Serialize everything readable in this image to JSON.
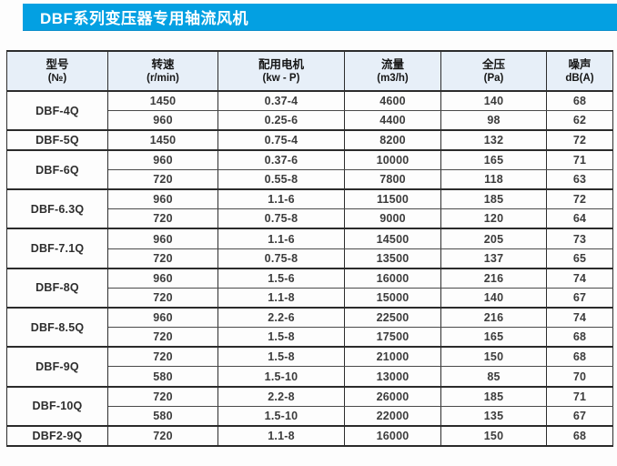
{
  "page_title": "DBF系列变压器专用轴流风机",
  "colors": {
    "title_bar_blue": "#03a0e2",
    "header_bg": "#e7eff8",
    "border_dark": "#2d2d2d",
    "cell_text": "#3c3c3c",
    "title_text": "#ffffff"
  },
  "table": {
    "headers": [
      {
        "line1": "型号",
        "line2": "(№)"
      },
      {
        "line1": "转速",
        "line2": "(r/min)"
      },
      {
        "line1": "配用电机",
        "line2": "(kw - P)"
      },
      {
        "line1": "流量",
        "line2": "(m3/h)"
      },
      {
        "line1": "全压",
        "line2": "(Pa)"
      },
      {
        "line1": "噪声",
        "line2": "dB(A)"
      }
    ],
    "groups": [
      {
        "model": "DBF-4Q",
        "rows": [
          [
            "1450",
            "0.37-4",
            "4600",
            "140",
            "68"
          ],
          [
            "960",
            "0.25-6",
            "4400",
            "98",
            "62"
          ]
        ]
      },
      {
        "model": "DBF-5Q",
        "rows": [
          [
            "1450",
            "0.75-4",
            "8200",
            "132",
            "72"
          ]
        ]
      },
      {
        "model": "DBF-6Q",
        "rows": [
          [
            "960",
            "0.37-6",
            "10000",
            "165",
            "71"
          ],
          [
            "720",
            "0.55-8",
            "7800",
            "118",
            "63"
          ]
        ]
      },
      {
        "model": "DBF-6.3Q",
        "rows": [
          [
            "960",
            "1.1-6",
            "11500",
            "185",
            "72"
          ],
          [
            "720",
            "0.75-8",
            "9000",
            "120",
            "64"
          ]
        ]
      },
      {
        "model": "DBF-7.1Q",
        "rows": [
          [
            "960",
            "1.1-6",
            "14500",
            "205",
            "73"
          ],
          [
            "720",
            "0.75-8",
            "13500",
            "137",
            "65"
          ]
        ]
      },
      {
        "model": "DBF-8Q",
        "rows": [
          [
            "960",
            "1.5-6",
            "16000",
            "216",
            "74"
          ],
          [
            "720",
            "1.1-8",
            "15000",
            "140",
            "67"
          ]
        ]
      },
      {
        "model": "DBF-8.5Q",
        "rows": [
          [
            "960",
            "2.2-6",
            "22500",
            "216",
            "74"
          ],
          [
            "720",
            "1.5-8",
            "17500",
            "165",
            "68"
          ]
        ]
      },
      {
        "model": "DBF-9Q",
        "rows": [
          [
            "720",
            "1.5-8",
            "21000",
            "150",
            "68"
          ],
          [
            "580",
            "1.5-10",
            "13000",
            "85",
            "70"
          ]
        ]
      },
      {
        "model": "DBF-10Q",
        "rows": [
          [
            "720",
            "2.2-8",
            "26000",
            "185",
            "71"
          ],
          [
            "580",
            "1.5-10",
            "22000",
            "135",
            "67"
          ]
        ]
      },
      {
        "model": "DBF2-9Q",
        "rows": [
          [
            "720",
            "1.1-8",
            "16000",
            "150",
            "68"
          ]
        ]
      }
    ]
  }
}
